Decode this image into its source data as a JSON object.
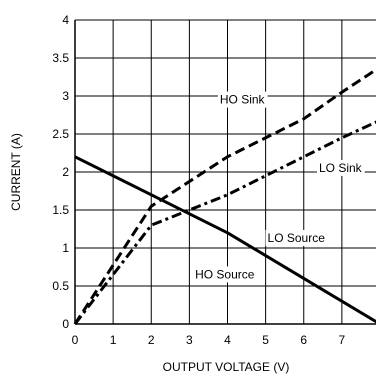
{
  "chart_data": {
    "type": "line",
    "title": "",
    "xlabel": "OUTPUT VOLTAGE (V)",
    "ylabel": "CURRENT (A)",
    "xlim": [
      0,
      8
    ],
    "ylim": [
      0,
      4
    ],
    "grid": true,
    "x_ticks": [
      0,
      1,
      2,
      3,
      4,
      5,
      6,
      7
    ],
    "y_ticks": [
      0,
      0.5,
      1,
      1.5,
      2,
      2.5,
      3,
      3.5,
      4
    ],
    "x_tick_labels": [
      "0",
      "1",
      "2",
      "3",
      "4",
      "5",
      "6",
      "7"
    ],
    "y_tick_labels": [
      "0",
      "0.5",
      "1",
      "1.5",
      "2",
      "2.5",
      "3",
      "3.5",
      "4"
    ],
    "series": [
      {
        "name": "HO Sink",
        "style": "dashed",
        "x": [
          0,
          2,
          4,
          6,
          7,
          8
        ],
        "y": [
          0,
          1.55,
          2.2,
          2.7,
          3.05,
          3.38
        ]
      },
      {
        "name": "LO Sink",
        "style": "dashdot",
        "x": [
          0,
          2,
          3,
          4,
          5,
          6,
          7,
          8
        ],
        "y": [
          0,
          1.3,
          1.5,
          1.7,
          1.95,
          2.2,
          2.45,
          2.68
        ]
      },
      {
        "name": "HO Source",
        "style": "solid",
        "x": [
          0,
          2,
          4,
          6,
          8
        ],
        "y": [
          2.2,
          1.7,
          1.2,
          0.6,
          0.0
        ]
      }
    ],
    "annotations": [
      {
        "text": "HO Sink",
        "x": 3.8,
        "y": 2.9
      },
      {
        "text": "LO Sink",
        "x": 6.4,
        "y": 2.0
      },
      {
        "text": "LO Source",
        "x": 5.05,
        "y": 1.08
      },
      {
        "text": "HO Source",
        "x": 3.15,
        "y": 0.6
      }
    ]
  }
}
